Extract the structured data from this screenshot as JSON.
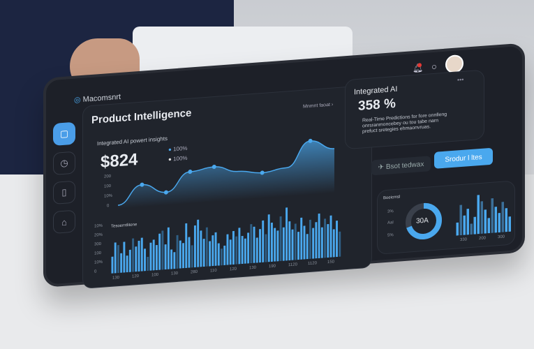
{
  "brand": {
    "name": "Macomsnrt"
  },
  "header": {
    "notification_dot_color": "#e53935"
  },
  "sidebar": {
    "items": [
      {
        "icon": "tablet-icon",
        "active": true
      },
      {
        "icon": "clock-icon"
      },
      {
        "icon": "document-icon"
      },
      {
        "icon": "lock-icon"
      }
    ]
  },
  "main": {
    "title": "Product Intelligence",
    "link": "Mnmnt faoat",
    "subtitle": "Integrated AI powert insights",
    "value": "$824",
    "legend": [
      "100%",
      "100%"
    ],
    "area_yticks": [
      "200",
      "100",
      "10%",
      "0"
    ]
  },
  "bars_panel": {
    "title": "Tesoerntlitene",
    "yticks": [
      "10%",
      "20%",
      "300",
      "100",
      "10%",
      "0"
    ],
    "xticks": [
      "130",
      "120",
      "100",
      "130",
      "280",
      "110",
      "120",
      "130",
      "190",
      "1120",
      "1120",
      "150"
    ]
  },
  "ai_card": {
    "title": "Integrated AI",
    "value": "358 %",
    "description": "Real-Time Predictions for fore onnlleng onrsranmoncebey ou tou tabe narn prefuct sretegies ehmaonvruas.",
    "menu": "•••"
  },
  "buttons": {
    "secondary": "Bsot tedwax",
    "primary": "Srodur l ltes"
  },
  "small_panel": {
    "title": "Boeicmsl",
    "donut_label": "30A",
    "donut_fraction": 0.7,
    "yticks": [
      "3%",
      "Aal",
      "5%"
    ],
    "xticks": [
      "330",
      "200",
      "300"
    ]
  },
  "colors": {
    "accent": "#4aa8ee",
    "panel": "#1d2028"
  },
  "chart_data": [
    {
      "type": "area",
      "y": [
        0,
        30,
        15,
        45,
        50,
        40,
        35,
        40,
        80,
        65
      ],
      "yticks": [
        "0",
        "10%",
        "100",
        "200"
      ]
    },
    {
      "type": "bar",
      "values": [
        30,
        55,
        50,
        35,
        55,
        30,
        40,
        60,
        45,
        55,
        60,
        40,
        25,
        50,
        55,
        45,
        65,
        70,
        45,
        75,
        35,
        30,
        60,
        50,
        45,
        80,
        55,
        40,
        75,
        85,
        65,
        50,
        70,
        45,
        55,
        60,
        40,
        30,
        35,
        55,
        45,
        60,
        50,
        65,
        50,
        45,
        55,
        70,
        65,
        45,
        60,
        75,
        50,
        85,
        70,
        60,
        55,
        80,
        60,
        95,
        70,
        55,
        65,
        50,
        75,
        60,
        45,
        70,
        55,
        65,
        80,
        55,
        70,
        60,
        75,
        50,
        65,
        45
      ],
      "yticks": [
        "0",
        "10%",
        "100",
        "300",
        "20%",
        "10%"
      ]
    },
    {
      "type": "bar",
      "values": [
        30,
        70,
        45,
        60,
        25,
        40,
        90,
        75,
        55,
        35,
        80,
        60,
        45,
        70,
        55,
        35
      ],
      "xticks": [
        "330",
        "200",
        "300"
      ]
    },
    {
      "type": "donut",
      "value": 0.7,
      "label": "30A"
    }
  ]
}
